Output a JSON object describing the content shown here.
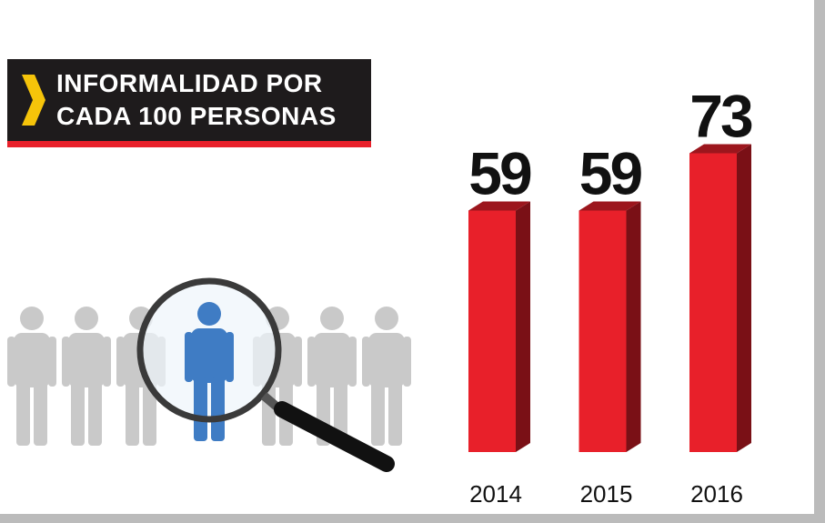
{
  "chart_data": {
    "type": "bar",
    "title": "INFORMALIDAD POR CADA 100 PERSONAS",
    "categories": [
      "2014",
      "2015",
      "2016"
    ],
    "values": [
      59,
      59,
      73
    ],
    "color": "#e8202a"
  }
}
